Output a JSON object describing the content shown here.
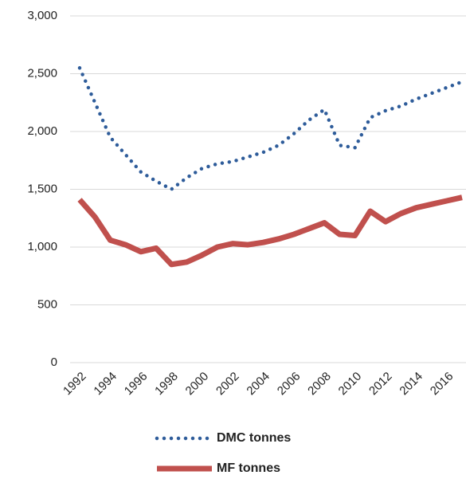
{
  "chart_data": {
    "type": "line",
    "categories": [
      "1992",
      null,
      "1994",
      null,
      "1996",
      null,
      "1998",
      null,
      "2000",
      null,
      "2002",
      null,
      "2004",
      null,
      "2006",
      null,
      "2008",
      null,
      "2010",
      null,
      "2012",
      null,
      "2014",
      null,
      "2016",
      null
    ],
    "series": [
      {
        "name": "DMC tonnes",
        "color": "#2e5c9a",
        "line_style": "dotted",
        "values": [
          2550,
          2250,
          1950,
          1800,
          1650,
          1570,
          1500,
          1600,
          1680,
          1720,
          1740,
          1780,
          1820,
          1880,
          1980,
          2100,
          2190,
          1880,
          1860,
          2120,
          2180,
          2220,
          2280,
          2330,
          2380,
          2430
        ]
      },
      {
        "name": "MF tonnes",
        "color": "#c0504d",
        "line_style": "solid",
        "values": [
          1410,
          1260,
          1060,
          1020,
          960,
          990,
          850,
          870,
          930,
          1000,
          1030,
          1020,
          1040,
          1070,
          1110,
          1160,
          1210,
          1110,
          1100,
          1310,
          1220,
          1290,
          1340,
          1370,
          1400,
          1430
        ]
      }
    ],
    "ylim": [
      0,
      3000
    ],
    "yticks": [
      0,
      500,
      {
        "value": 1000,
        "label": "1,000"
      },
      {
        "value": 1500,
        "label": "1,500"
      },
      {
        "value": 2000,
        "label": "2,000"
      },
      {
        "value": 2500,
        "label": "2,500"
      },
      {
        "value": 3000,
        "label": "3,000"
      }
    ],
    "grid": true,
    "legend": "bottom"
  }
}
